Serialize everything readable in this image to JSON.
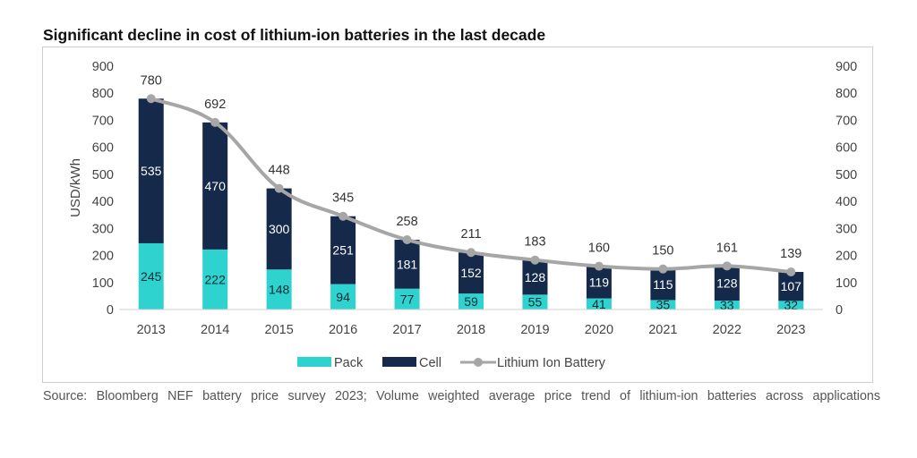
{
  "chart_data": {
    "type": "bar",
    "title": "Significant decline in cost of lithium-ion batteries in the last decade",
    "ylabel": "USD/kWh",
    "xlabel": "",
    "ylim": [
      0,
      900
    ],
    "yticks": [
      0,
      100,
      200,
      300,
      400,
      500,
      600,
      700,
      800,
      900
    ],
    "secondary_ylim": [
      0,
      900
    ],
    "stacked": true,
    "grid": false,
    "legend_position": "bottom",
    "categories": [
      "2013",
      "2014",
      "2015",
      "2016",
      "2017",
      "2018",
      "2019",
      "2020",
      "2021",
      "2022",
      "2023"
    ],
    "series": [
      {
        "name": "Pack",
        "type": "bar",
        "color": "#2ed3cf",
        "values": [
          245,
          222,
          148,
          94,
          77,
          59,
          55,
          41,
          35,
          33,
          32
        ]
      },
      {
        "name": "Cell",
        "type": "bar",
        "color": "#15294a",
        "values": [
          535,
          470,
          300,
          251,
          181,
          152,
          128,
          119,
          115,
          128,
          107
        ]
      },
      {
        "name": "Lithium Ion Battery",
        "type": "line",
        "color": "#a6a6a6",
        "values": [
          780,
          692,
          448,
          345,
          258,
          211,
          183,
          160,
          150,
          161,
          139
        ]
      }
    ]
  },
  "source": "Source: Bloomberg NEF battery price survey 2023; Volume weighted average price trend of lithium-ion batteries across applications"
}
